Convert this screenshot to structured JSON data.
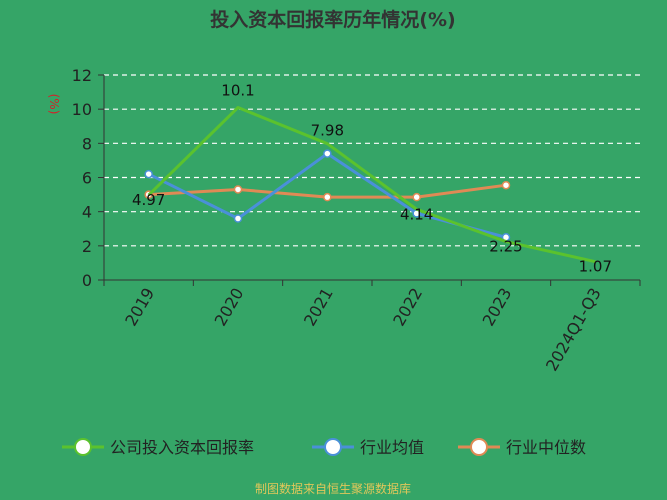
{
  "chart_data": {
    "type": "line",
    "title": "投入资本回报率历年情况(%)",
    "ylabel": "(%)",
    "ylim": [
      0,
      12
    ],
    "yticks": [
      "0",
      "2",
      "4",
      "6",
      "8",
      "10",
      "12"
    ],
    "grid": true,
    "categories": [
      "2019",
      "2020",
      "2021",
      "2022",
      "2023",
      "2024Q1-Q3"
    ],
    "series": [
      {
        "name": "公司投入资本回报率",
        "color": "#5bc22d",
        "values": [
          4.97,
          10.1,
          7.98,
          4.14,
          2.25,
          1.07
        ],
        "labels": [
          "4.97",
          "10.1",
          "7.98",
          "4.14",
          "2.25",
          "1.07"
        ]
      },
      {
        "name": "行业均值",
        "color": "#4a90d9",
        "values": [
          6.2,
          3.6,
          7.4,
          3.9,
          2.5,
          null
        ]
      },
      {
        "name": "行业中位数",
        "color": "#e08a55",
        "values": [
          5.0,
          5.3,
          4.85,
          4.85,
          5.55,
          null
        ]
      }
    ],
    "legend_position": "bottom",
    "source": "制图数据来自恒生聚源数据库"
  }
}
